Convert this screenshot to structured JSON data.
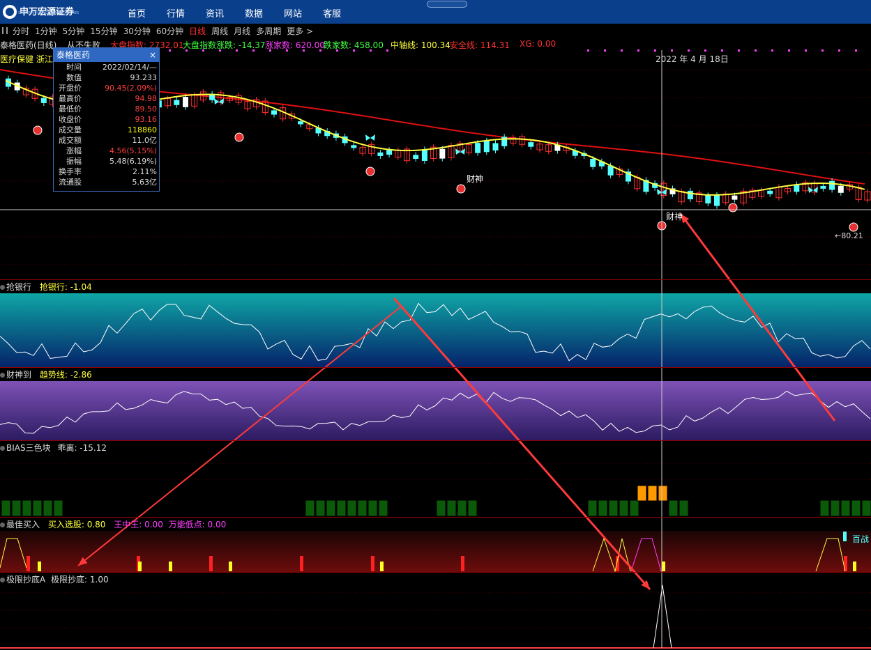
{
  "nav": {
    "logo_text": "申万宏源证券",
    "logo_sub": "SHENWAN HONGYUAN SECURITIES",
    "menu": [
      "首页",
      "行情",
      "资讯",
      "数据",
      "网站",
      "客服"
    ]
  },
  "periods": {
    "items": [
      "分时",
      "1分钟",
      "5分钟",
      "15分钟",
      "30分钟",
      "60分钟",
      "日线",
      "周线",
      "月线",
      "多周期",
      "更多 >"
    ],
    "active_index": 6
  },
  "info_row": {
    "stock_title": "泰格医药(日线)",
    "indicator_name": "从不失败",
    "index_label": "大盘指数: 2732.01",
    "index_change": "大盘指数涨跌: -14.37",
    "up_count": "涨家数: 620.00",
    "down_count": "跌家数: 458.00",
    "axis_line": "中轴线: 100.34",
    "safe_line": "安全线: 114.31",
    "xg": "XG: 0.00",
    "sector": "医疗保健 浙江板"
  },
  "date_label": "2022 年 4 月 18日",
  "price_low_label": "80.21",
  "marker_label": "财神",
  "infobox": {
    "title": "泰格医药",
    "close_icon": "×",
    "rows": [
      {
        "label": "时间",
        "value": "2022/02/14/—",
        "color": "#dddddd"
      },
      {
        "label": "数值",
        "value": "93.233",
        "color": "#dddddd"
      },
      {
        "label": "开盘价",
        "value": "90.45(2.09%)",
        "color": "#ff4040"
      },
      {
        "label": "最高价",
        "value": "94.98",
        "color": "#ff4040"
      },
      {
        "label": "最低价",
        "value": "89.50",
        "color": "#ff4040"
      },
      {
        "label": "收盘价",
        "value": "93.16",
        "color": "#ff4040"
      },
      {
        "label": "成交量",
        "value": "118860",
        "color": "#ffff00"
      },
      {
        "label": "成交额",
        "value": "11.0亿",
        "color": "#dddddd"
      },
      {
        "label": "涨幅",
        "value": "4.56(5.15%)",
        "color": "#ff4040"
      },
      {
        "label": "振幅",
        "value": "5.48(6.19%)",
        "color": "#dddddd"
      },
      {
        "label": "换手率",
        "value": "2.11%",
        "color": "#dddddd"
      },
      {
        "label": "流通股",
        "value": "5.63亿",
        "color": "#dddddd"
      }
    ]
  },
  "panels": {
    "p1": {
      "name": "抢银行",
      "value_label": "抢银行: -1.04"
    },
    "p2": {
      "name": "财神到",
      "value_label": "趋势线: -2.86"
    },
    "p3": {
      "name": "BIAS三色块",
      "value_label": "乖离: -15.12"
    },
    "p4": {
      "name": "最佳买入",
      "value_label": "买入选股: 0.80",
      "extra1": "王中王: 0.00",
      "extra2": "万能低点: 0.00",
      "side_label": "百战"
    },
    "p5": {
      "name": "极限抄底A",
      "value_label": "极限抄底: 1.00"
    }
  },
  "colors": {
    "up": "#ff3030",
    "down": "#54ffff",
    "ma_yellow": "#ffff40",
    "ma_red": "#e01010",
    "panel1_top": "#0d9b9b",
    "panel1_bottom": "#082a6a",
    "panel2_top": "#7a4fb0",
    "panel2_bottom": "#2a1a60",
    "bias_green": "#0a5a0a",
    "bias_orange": "#ff9900",
    "arrow": "#ff3a3a"
  }
}
